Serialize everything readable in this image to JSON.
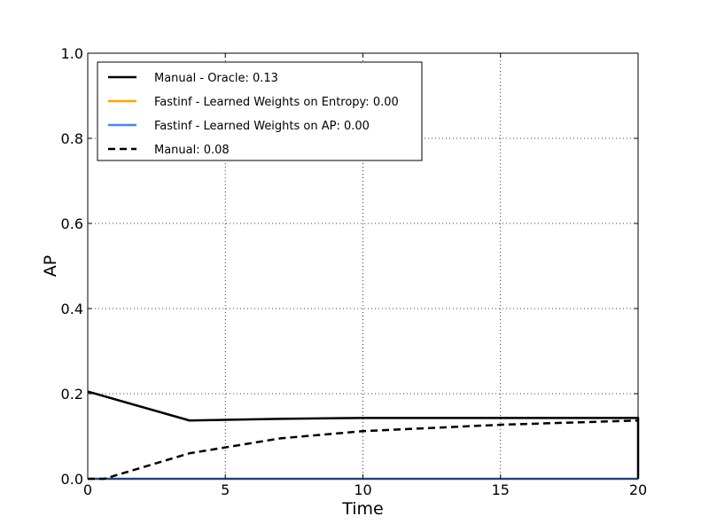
{
  "chart_data": {
    "type": "line",
    "title": "",
    "xlabel": "Time",
    "ylabel": "AP",
    "xlim": [
      0,
      20
    ],
    "ylim": [
      0,
      1.0
    ],
    "x_ticks": [
      0,
      5,
      10,
      15,
      20
    ],
    "y_ticks": [
      0.0,
      0.2,
      0.4,
      0.6,
      0.8,
      1.0
    ],
    "x_tick_labels": [
      "0",
      "5",
      "10",
      "15",
      "20"
    ],
    "y_tick_labels": [
      "0.0",
      "0.2",
      "0.4",
      "0.6",
      "0.8",
      "1.0"
    ],
    "grid": true,
    "legend_position": "top-left",
    "series": [
      {
        "name": "Manual - Oracle: 0.13",
        "color": "#000000",
        "style": "solid",
        "x": [
          0,
          3.7,
          7,
          10,
          15,
          20,
          20
        ],
        "y": [
          0.205,
          0.137,
          0.141,
          0.143,
          0.143,
          0.143,
          0.0
        ]
      },
      {
        "name": "Fastinf - Learned Weights on Entropy: 0.00",
        "color": "#ffa500",
        "style": "solid",
        "x": [
          0,
          20
        ],
        "y": [
          0.0,
          0.0
        ]
      },
      {
        "name": "Fastinf - Learned Weights on AP: 0.00",
        "color": "#4488ee",
        "style": "solid",
        "x": [
          0,
          20
        ],
        "y": [
          0.0,
          0.0
        ]
      },
      {
        "name": "Manual: 0.08",
        "color": "#000000",
        "style": "dashed",
        "x": [
          0,
          0.6,
          3.7,
          7,
          10,
          15,
          20
        ],
        "y": [
          0.0,
          0.0,
          0.06,
          0.095,
          0.112,
          0.127,
          0.137
        ]
      }
    ]
  }
}
